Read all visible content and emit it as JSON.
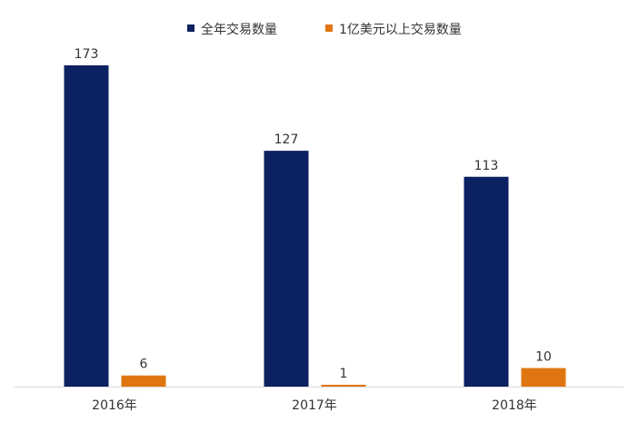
{
  "chart_data": {
    "type": "bar",
    "categories": [
      "2016年",
      "2017年",
      "2018年"
    ],
    "series": [
      {
        "name": "全年交易数量",
        "values": [
          173,
          127,
          113
        ]
      },
      {
        "name": "1亿美元以上交易数量",
        "values": [
          6,
          1,
          10
        ]
      }
    ],
    "title": "",
    "xlabel": "",
    "ylabel": "",
    "ylim": [
      0,
      173
    ],
    "grid": false,
    "legend_position": "top-center",
    "colors": [
      "#0b2161",
      "#e07612"
    ],
    "data_labels": true
  }
}
